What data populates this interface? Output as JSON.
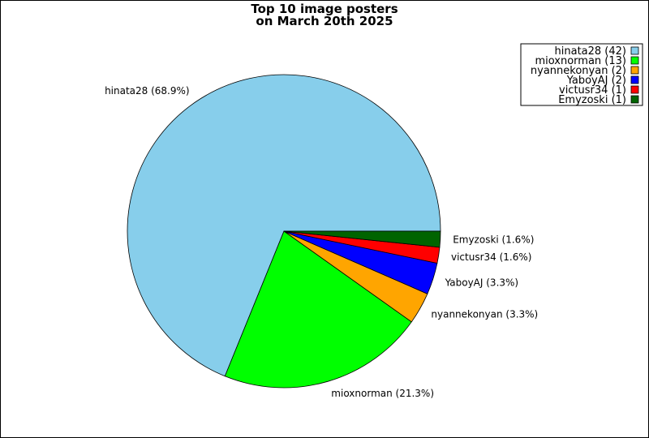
{
  "chart_data": {
    "type": "pie",
    "title": "Top 10 image posters",
    "subtitle": "on March 20th 2025",
    "slices": [
      {
        "name": "hinata28",
        "count": 42,
        "percent": 68.9,
        "color": "#87ceeb",
        "legend": "hinata28 (42)",
        "label": "hinata28 (68.9%)"
      },
      {
        "name": "mioxnorman",
        "count": 13,
        "percent": 21.3,
        "color": "#00ff00",
        "legend": "mioxnorman (13)",
        "label": "mioxnorman (21.3%)"
      },
      {
        "name": "nyannekonyan",
        "count": 2,
        "percent": 3.3,
        "color": "#ffa500",
        "legend": "nyannekonyan (2)",
        "label": "nyannekonyan (3.3%)"
      },
      {
        "name": "YaboyAJ",
        "count": 2,
        "percent": 3.3,
        "color": "#0000ff",
        "legend": "YaboyAJ (2)",
        "label": "YaboyAJ (3.3%)"
      },
      {
        "name": "victusr34",
        "count": 1,
        "percent": 1.6,
        "color": "#ff0000",
        "legend": "victusr34 (1)",
        "label": "victusr34 (1.6%)"
      },
      {
        "name": "Emyzoski",
        "count": 1,
        "percent": 1.6,
        "color": "#006400",
        "legend": "Emyzoski (1)",
        "label": "Emyzoski (1.6%)"
      }
    ],
    "legend_position": "top-right",
    "start_angle_deg": 0,
    "direction": "clockwise"
  }
}
